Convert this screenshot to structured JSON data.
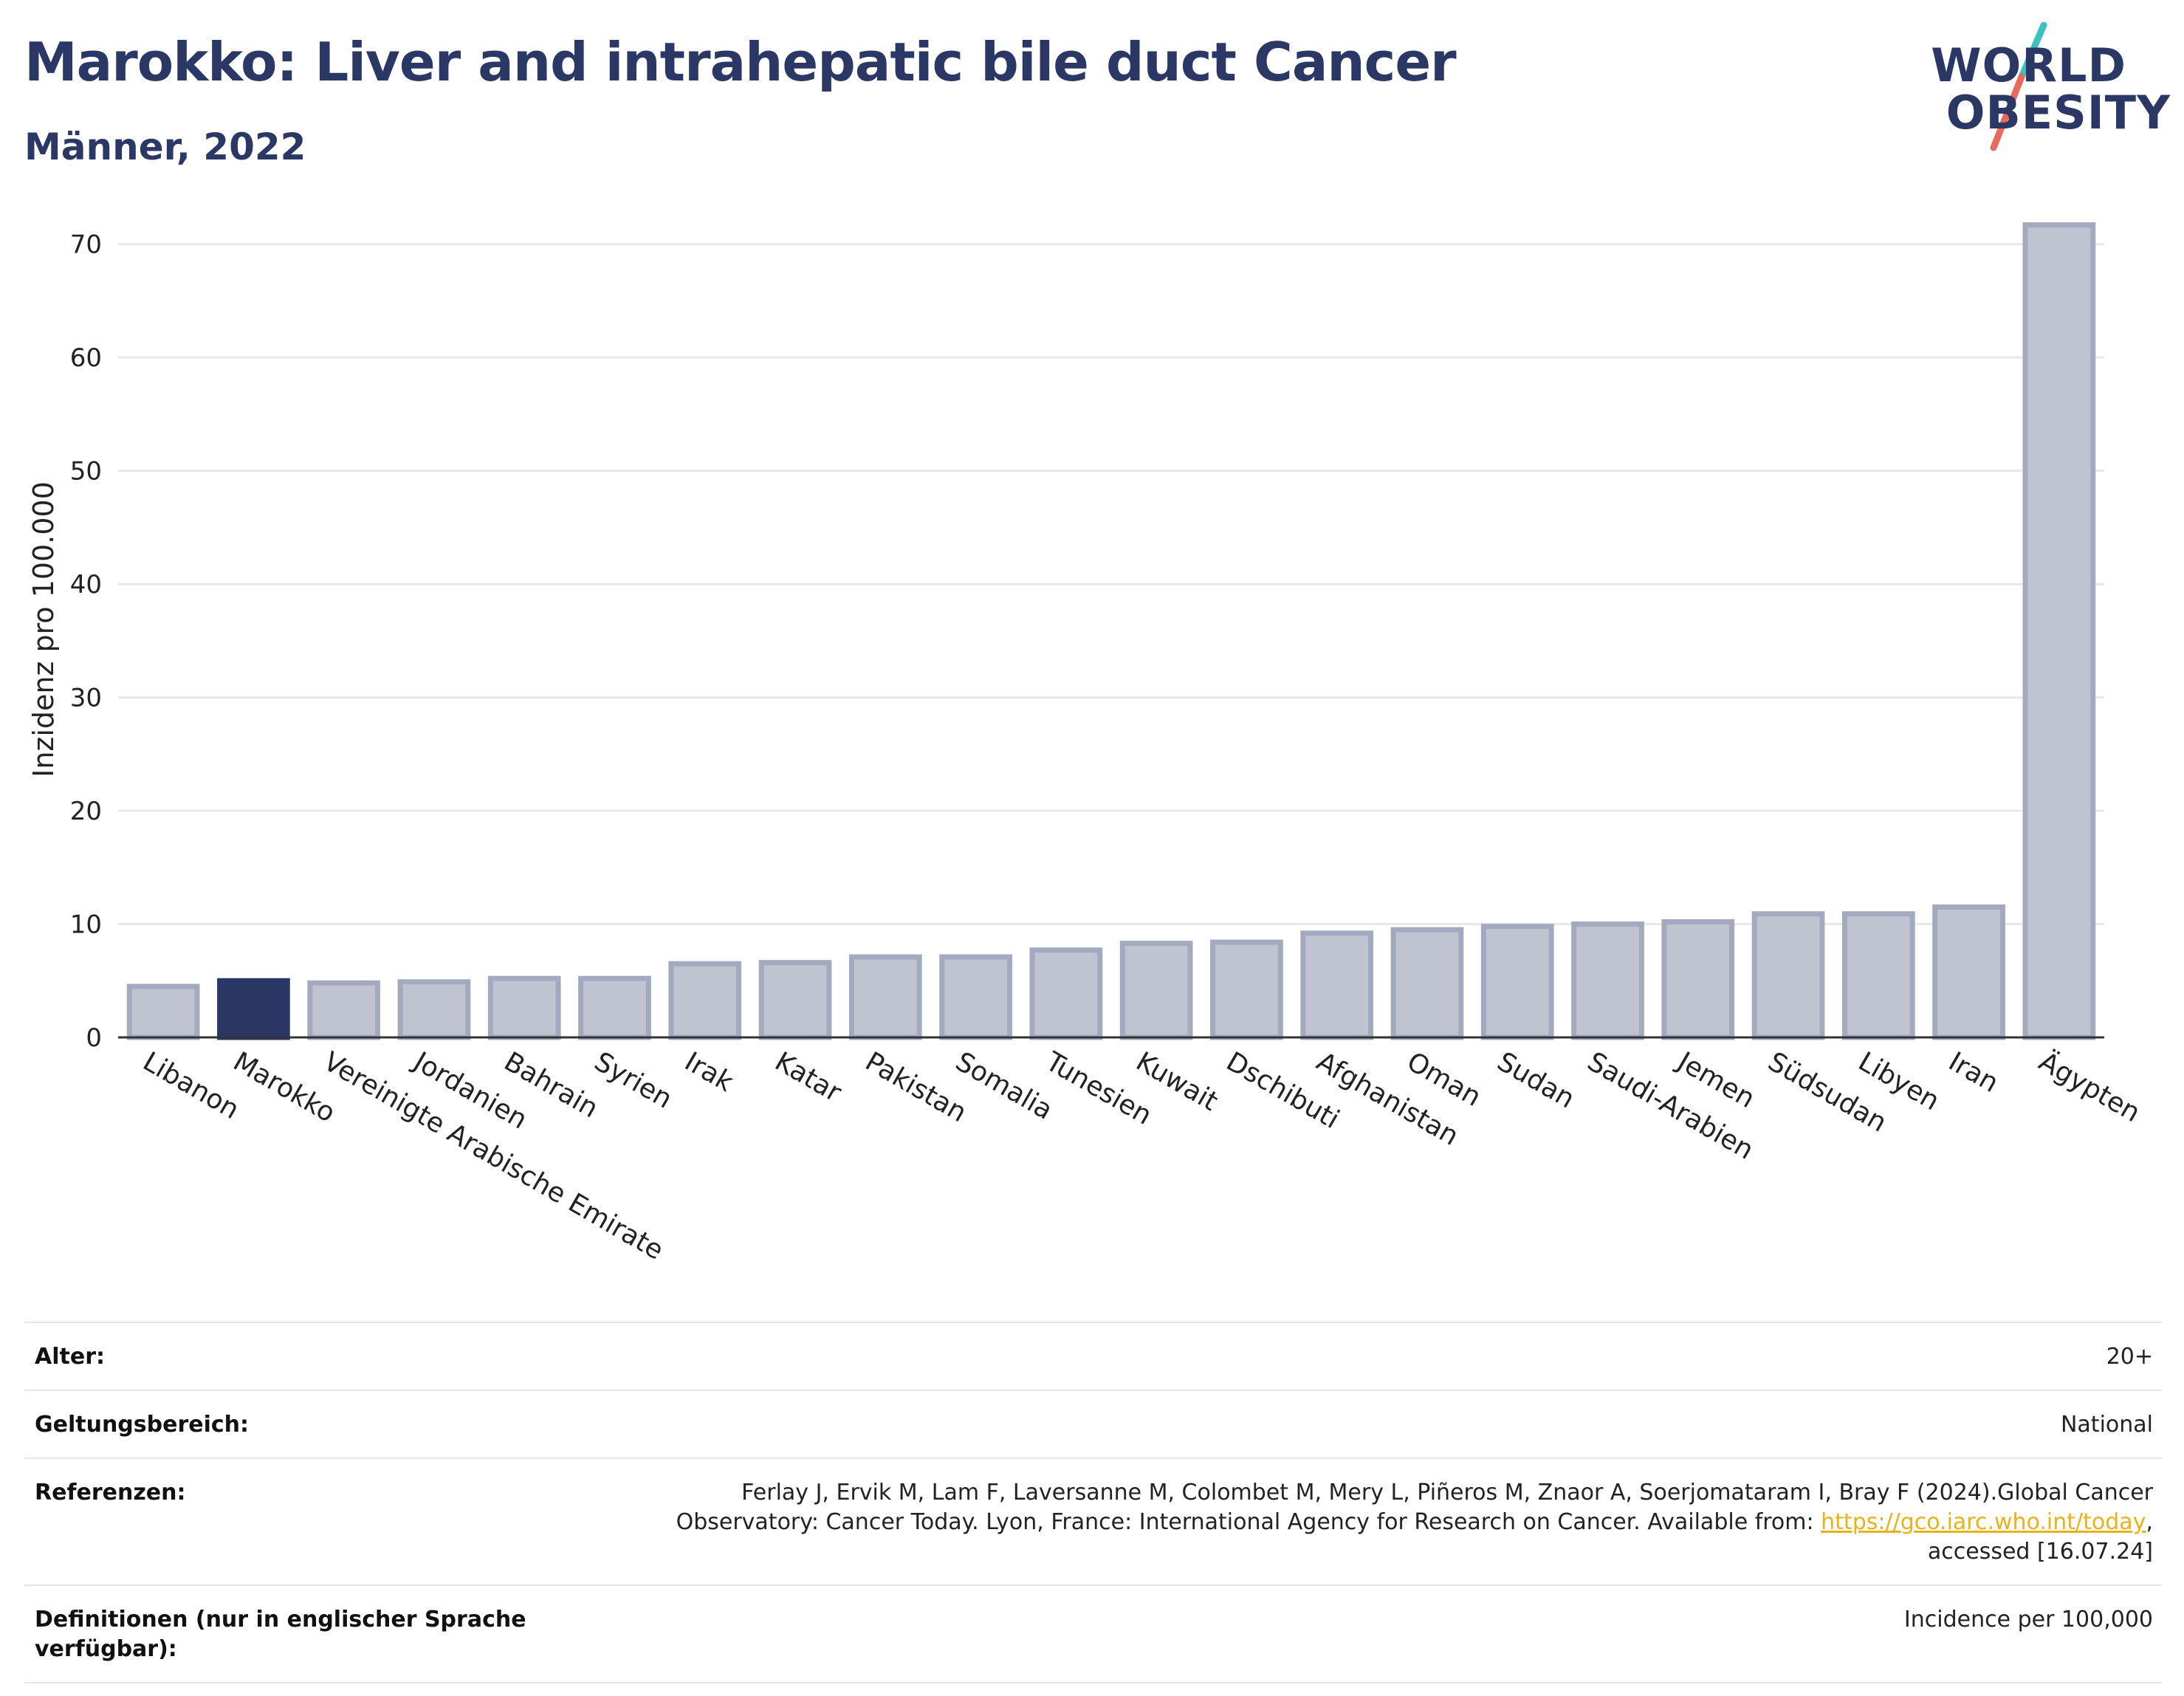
{
  "header": {
    "title": "Marokko: Liver and intrahepatic bile duct Cancer",
    "subtitle": "Männer, 2022"
  },
  "logo": {
    "line1": "WORLD",
    "line2": "OBESITY",
    "slash_colors": [
      "#3ec1c1",
      "#e86a5a"
    ]
  },
  "chart_data": {
    "type": "bar",
    "ylabel": "Inzidenz pro 100.000",
    "xlabel": "",
    "ylim": [
      0,
      72
    ],
    "yticks": [
      0,
      10,
      20,
      30,
      40,
      50,
      60,
      70
    ],
    "categories": [
      "Libanon",
      "Marokko",
      "Vereinigte Arabische Emirate",
      "Jordanien",
      "Bahrain",
      "Syrien",
      "Irak",
      "Katar",
      "Pakistan",
      "Somalia",
      "Tunesien",
      "Kuwait",
      "Dschibuti",
      "Afghanistan",
      "Oman",
      "Sudan",
      "Saudi-Arabien",
      "Jemen",
      "Südsudan",
      "Libyen",
      "Iran",
      "Ägypten"
    ],
    "values": [
      4.5,
      5.0,
      4.8,
      4.9,
      5.2,
      5.2,
      6.5,
      6.6,
      7.1,
      7.1,
      7.7,
      8.3,
      8.4,
      9.2,
      9.5,
      9.8,
      10.0,
      10.2,
      10.9,
      10.9,
      11.5,
      71.7
    ],
    "highlight": "Marokko",
    "grid": true,
    "colors": {
      "bar_fill": "#c0c3d0",
      "bar_stroke": "#a3a9bf",
      "highlight": "#2b3764",
      "grid": "#e8e8e8",
      "axis": "#333333"
    }
  },
  "meta": {
    "age_label": "Alter:",
    "age_value": "20+",
    "scope_label": "Geltungsbereich:",
    "scope_value": "National",
    "ref_label": "Referenzen:",
    "ref_text1": "Ferlay J, Ervik M, Lam F, Laversanne M, Colombet M, Mery L, Piñeros M, Znaor A, Soerjomataram I, Bray F (2024).Global Cancer Observatory: Cancer Today. Lyon, France: International Agency for Research on Cancer. Available from: ",
    "ref_link": "https://gco.iarc.who.int/today",
    "ref_text2": ", accessed [16.07.24]",
    "def_label": "Definitionen (nur in englischer Sprache verfügbar):",
    "def_value": "Incidence per 100,000"
  }
}
